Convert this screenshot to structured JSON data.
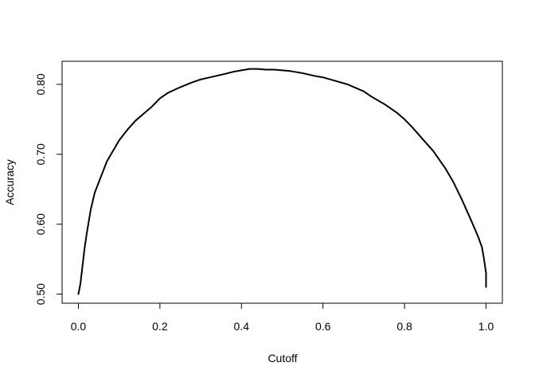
{
  "chart_data": {
    "type": "line",
    "title": "",
    "xlabel": "Cutoff",
    "ylabel": "Accuracy",
    "xlim": [
      -0.04,
      1.04
    ],
    "ylim": [
      0.487,
      0.833
    ],
    "x_ticks": [
      0.0,
      0.2,
      0.4,
      0.6,
      0.8,
      1.0
    ],
    "x_tick_labels": [
      "0.0",
      "0.2",
      "0.4",
      "0.6",
      "0.8",
      "1.0"
    ],
    "y_ticks": [
      0.5,
      0.6,
      0.7,
      0.8
    ],
    "y_tick_labels": [
      "0.50",
      "0.60",
      "0.70",
      "0.80"
    ],
    "grid": false,
    "legend": "none",
    "line_color": "#000000",
    "series": [
      {
        "x": [
          0.0,
          0.005,
          0.01,
          0.015,
          0.02,
          0.03,
          0.04,
          0.05,
          0.06,
          0.07,
          0.08,
          0.09,
          0.1,
          0.12,
          0.14,
          0.16,
          0.18,
          0.2,
          0.22,
          0.25,
          0.28,
          0.3,
          0.33,
          0.36,
          0.38,
          0.4,
          0.42,
          0.44,
          0.46,
          0.48,
          0.5,
          0.52,
          0.55,
          0.58,
          0.6,
          0.63,
          0.66,
          0.7,
          0.72,
          0.75,
          0.78,
          0.8,
          0.82,
          0.85,
          0.87,
          0.9,
          0.92,
          0.94,
          0.96,
          0.98,
          0.99,
          0.995,
          1.0,
          1.0
        ],
        "y": [
          0.5,
          0.515,
          0.54,
          0.565,
          0.585,
          0.62,
          0.645,
          0.66,
          0.675,
          0.69,
          0.7,
          0.71,
          0.72,
          0.735,
          0.748,
          0.758,
          0.768,
          0.78,
          0.788,
          0.796,
          0.803,
          0.807,
          0.811,
          0.815,
          0.818,
          0.82,
          0.822,
          0.822,
          0.821,
          0.821,
          0.82,
          0.819,
          0.816,
          0.812,
          0.81,
          0.805,
          0.8,
          0.79,
          0.782,
          0.772,
          0.76,
          0.75,
          0.738,
          0.718,
          0.705,
          0.68,
          0.66,
          0.636,
          0.61,
          0.583,
          0.567,
          0.55,
          0.53,
          0.51
        ]
      }
    ]
  }
}
